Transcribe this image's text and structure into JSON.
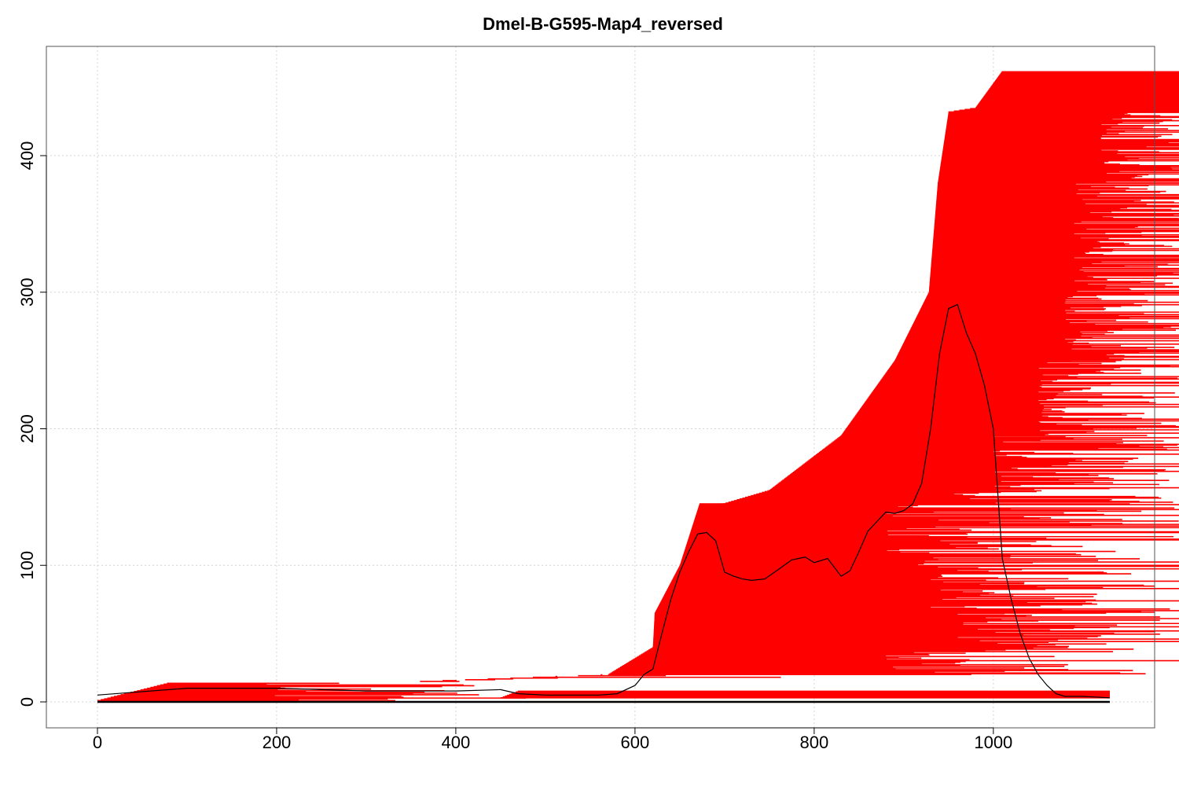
{
  "chart_data": {
    "type": "line",
    "title": "Dmel-B-G595-Map4_reversed",
    "xlabel": "",
    "ylabel": "",
    "xlim": [
      -57,
      1180
    ],
    "ylim": [
      -19,
      480
    ],
    "xticks": [
      0,
      200,
      400,
      600,
      800,
      1000
    ],
    "yticks": [
      0,
      100,
      200,
      300,
      400
    ],
    "grid": true,
    "legend": "none",
    "colors": {
      "segments": "#ff0000",
      "coverage": "#000000",
      "baseline": "#000000",
      "grid": "#d3d3d3",
      "frame": "#555555"
    },
    "baseline": {
      "x": [
        0,
        1130
      ],
      "y": 0
    },
    "coverage": {
      "x": [
        0,
        100,
        200,
        300,
        400,
        450,
        470,
        500,
        560,
        580,
        600,
        610,
        620,
        630,
        640,
        650,
        660,
        670,
        680,
        690,
        700,
        710,
        720,
        730,
        745,
        760,
        775,
        790,
        800,
        815,
        830,
        840,
        850,
        860,
        870,
        880,
        890,
        900,
        910,
        920,
        930,
        940,
        950,
        960,
        970,
        980,
        990,
        1000,
        1010,
        1020,
        1030,
        1040,
        1050,
        1060,
        1070,
        1080,
        1100,
        1130
      ],
      "y": [
        5,
        10,
        10,
        8,
        8,
        9,
        6,
        5,
        5,
        6,
        12,
        20,
        24,
        50,
        75,
        95,
        110,
        123,
        124,
        118,
        95,
        92,
        90,
        89,
        90,
        97,
        104,
        106,
        102,
        105,
        92,
        96,
        110,
        125,
        132,
        139,
        138,
        140,
        145,
        160,
        200,
        255,
        288,
        291,
        270,
        255,
        232,
        200,
        105,
        75,
        50,
        32,
        20,
        12,
        6,
        4,
        4,
        3
      ]
    },
    "segment_groups": [
      {
        "y_from": 1,
        "y_to": 14,
        "x_start_from": 0,
        "x_start_to": 80,
        "x_end_min": 180,
        "x_end_max": 480
      },
      {
        "y_from": 3,
        "y_to": 8,
        "x_start_from": 450,
        "x_start_to": 470,
        "x_end_min": 1130,
        "x_end_max": 1130
      },
      {
        "y_from": 15,
        "y_to": 20,
        "x_start_from": 360,
        "x_start_to": 570,
        "x_end_min": 380,
        "x_end_max": 780
      },
      {
        "y_from": 20,
        "y_to": 40,
        "x_start_from": 570,
        "x_start_to": 620,
        "x_end_min": 880,
        "x_end_max": 1240
      },
      {
        "y_from": 40,
        "y_to": 65,
        "x_start_from": 620,
        "x_start_to": 622,
        "x_end_min": 960,
        "x_end_max": 1280
      },
      {
        "y_from": 65,
        "y_to": 100,
        "x_start_from": 622,
        "x_start_to": 650,
        "x_end_min": 930,
        "x_end_max": 1270
      },
      {
        "y_from": 100,
        "y_to": 145,
        "x_start_from": 650,
        "x_start_to": 672,
        "x_end_min": 880,
        "x_end_max": 1270
      },
      {
        "y_from": 145,
        "y_to": 155,
        "x_start_from": 698,
        "x_start_to": 750,
        "x_end_min": 950,
        "x_end_max": 1270
      },
      {
        "y_from": 155,
        "y_to": 195,
        "x_start_from": 750,
        "x_start_to": 830,
        "x_end_min": 1000,
        "x_end_max": 1275
      },
      {
        "y_from": 195,
        "y_to": 250,
        "x_start_from": 830,
        "x_start_to": 890,
        "x_end_min": 1050,
        "x_end_max": 1280
      },
      {
        "y_from": 250,
        "y_to": 300,
        "x_start_from": 890,
        "x_start_to": 928,
        "x_end_min": 1080,
        "x_end_max": 1290
      },
      {
        "y_from": 300,
        "y_to": 380,
        "x_start_from": 928,
        "x_start_to": 938,
        "x_end_min": 1090,
        "x_end_max": 1320
      },
      {
        "y_from": 380,
        "y_to": 432,
        "x_start_from": 938,
        "x_start_to": 950,
        "x_end_min": 1120,
        "x_end_max": 1330
      },
      {
        "y_from": 432,
        "y_to": 435,
        "x_start_from": 950,
        "x_start_to": 980,
        "x_end_min": 1240,
        "x_end_max": 1290
      },
      {
        "y_from": 435,
        "y_to": 462,
        "x_start_from": 980,
        "x_start_to": 1010,
        "x_end_min": 1260,
        "x_end_max": 1380
      }
    ]
  }
}
